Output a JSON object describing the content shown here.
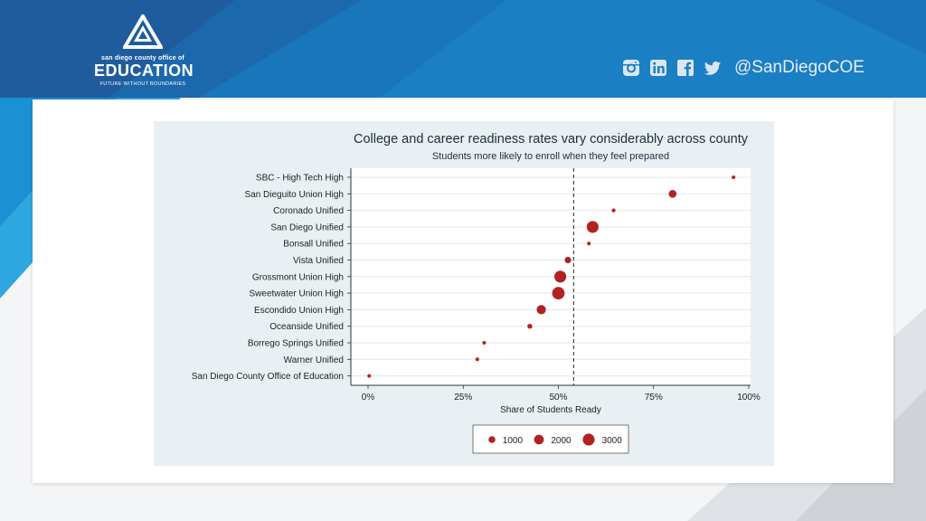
{
  "header": {
    "logo": {
      "top_text": "san diego county office of",
      "main_text": "EDUCATION",
      "tagline": "FUTURE WITHOUT BOUNDARIES"
    },
    "social_icons": [
      "instagram-icon",
      "linkedin-icon",
      "facebook-icon",
      "twitter-icon"
    ],
    "handle": "@SanDiegoCOE"
  },
  "colors": {
    "brand_dark": "#1f5c9e",
    "brand_mid": "#1b7fc4",
    "brand_light": "#2ea7e0",
    "marker": "#b22222",
    "panel_bg": "#e9f0f3"
  },
  "chart_data": {
    "type": "scatter",
    "title": "College and career readiness rates vary considerably across county",
    "subtitle": "Students more likely to enroll when they feel prepared",
    "xlabel": "Share of Students Ready",
    "xlim": [
      0,
      1
    ],
    "xticks": [
      0,
      0.25,
      0.5,
      0.75,
      1.0
    ],
    "xtick_labels": [
      "0%",
      "25%",
      "50%",
      "75%",
      "100%"
    ],
    "reference_line": {
      "x": 0.54,
      "style": "dashed"
    },
    "grid": "horizontal",
    "points": [
      {
        "label": "SBC - High Tech High",
        "x": 0.96,
        "size": 150
      },
      {
        "label": "San Dieguito Union High",
        "x": 0.8,
        "size": 1300
      },
      {
        "label": "Coronado Unified",
        "x": 0.645,
        "size": 300
      },
      {
        "label": "San Diego Unified",
        "x": 0.59,
        "size": 3000
      },
      {
        "label": "Bonsall Unified",
        "x": 0.58,
        "size": 120
      },
      {
        "label": "Vista Unified",
        "x": 0.525,
        "size": 900
      },
      {
        "label": "Grossmont Union High",
        "x": 0.505,
        "size": 3000
      },
      {
        "label": "Sweetwater Union High",
        "x": 0.5,
        "size": 3300
      },
      {
        "label": "Escondido Union High",
        "x": 0.455,
        "size": 1800
      },
      {
        "label": "Oceanside Unified",
        "x": 0.425,
        "size": 500
      },
      {
        "label": "Borrego Springs Unified",
        "x": 0.305,
        "size": 90
      },
      {
        "label": "Warner Unified",
        "x": 0.287,
        "size": 60
      },
      {
        "label": "San Diego County Office of Education",
        "x": 0.003,
        "size": 120
      }
    ],
    "legend": {
      "placement": "bottom",
      "entries": [
        {
          "label": "1000",
          "size": 1000
        },
        {
          "label": "2000",
          "size": 2000
        },
        {
          "label": "3000",
          "size": 3000
        }
      ]
    }
  }
}
